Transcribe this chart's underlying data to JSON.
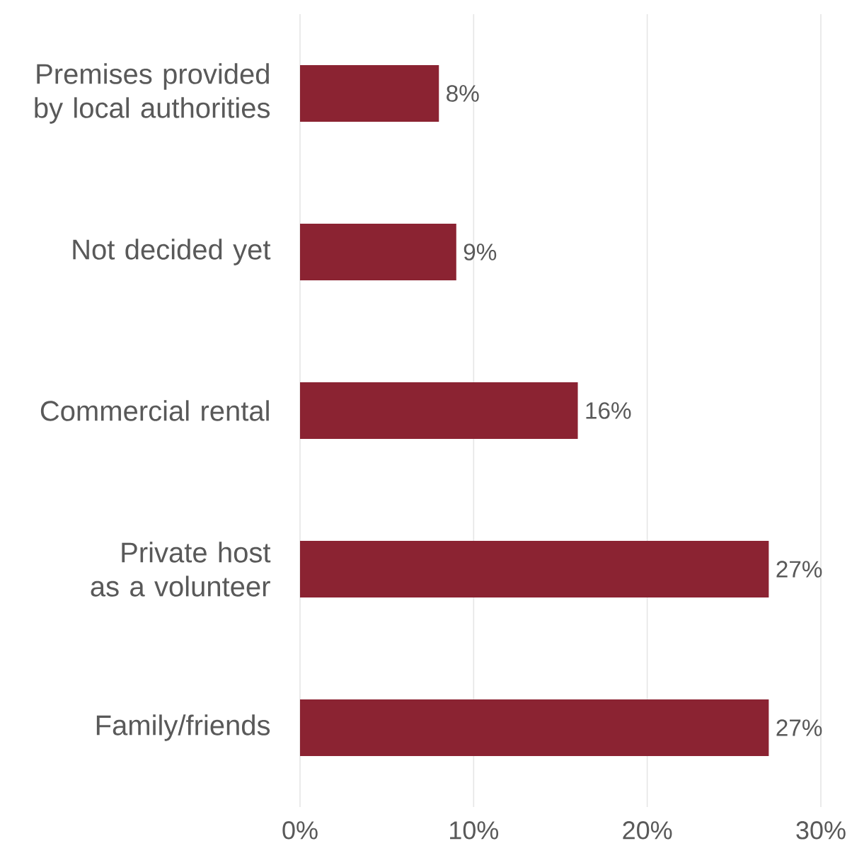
{
  "chart_data": {
    "type": "bar",
    "orientation": "horizontal",
    "categories": [
      "Premises provided by local authorities",
      "Not decided yet",
      "Commercial rental",
      "Private host as a volunteer",
      "Family/friends"
    ],
    "values": [
      8,
      9,
      16,
      27,
      27
    ],
    "value_labels": [
      "8%",
      "9%",
      "16%",
      "27%",
      "27%"
    ],
    "color": "#8b2332",
    "xlim": [
      0,
      30
    ],
    "xticks": [
      {
        "value": 0,
        "label": "0%"
      },
      {
        "value": 10,
        "label": "10%"
      },
      {
        "value": 20,
        "label": "20%"
      },
      {
        "value": 30,
        "label": "30%"
      }
    ],
    "grid": "x"
  }
}
